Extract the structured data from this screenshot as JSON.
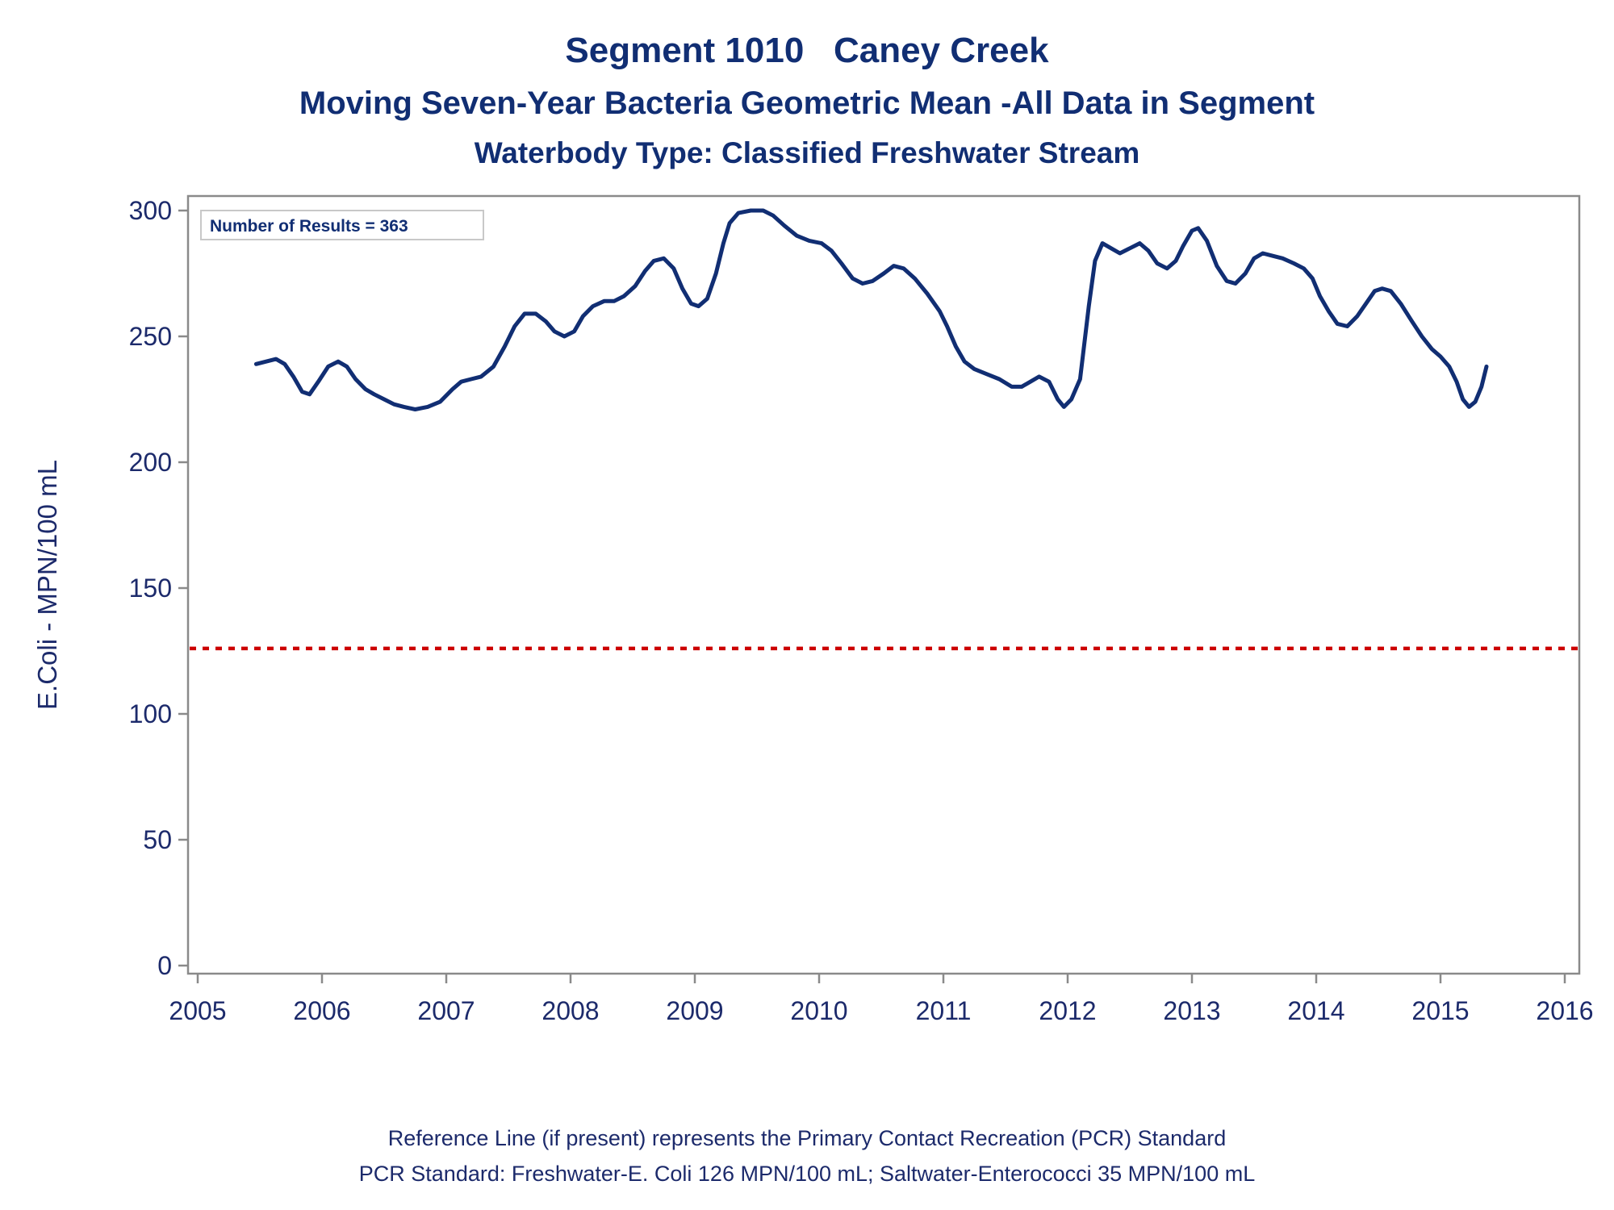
{
  "title": "Segment 1010   Caney Creek",
  "subtitle": "Moving Seven-Year Bacteria Geometric Mean -All Data in Segment",
  "subtitle2": "Waterbody Type: Classified Freshwater Stream",
  "footnote1": "Reference Line (if present) represents the Primary Contact Recreation (PCR) Standard",
  "footnote2": "PCR Standard: Freshwater-E. Coli 126 MPN/100 mL; Saltwater-Enterococci 35 MPN/100 mL",
  "colors": {
    "line": "#112e73",
    "reference": "#cc0000",
    "axis": "#8a8a8a",
    "text": "#1c2a6b"
  },
  "chart_data": {
    "type": "line",
    "ylabel": "E.Coli - MPN/100 mL",
    "xlabel": "",
    "xlim": [
      2005,
      2016
    ],
    "ylim": [
      0,
      300
    ],
    "xticks": [
      2005,
      2006,
      2007,
      2008,
      2009,
      2010,
      2011,
      2012,
      2013,
      2014,
      2015,
      2016
    ],
    "yticks": [
      0,
      50,
      100,
      150,
      200,
      250,
      300
    ],
    "grid": false,
    "annotation": "Number of Results = 363",
    "reference_line": {
      "y": 126,
      "style": "dotted"
    },
    "series": [
      {
        "x": [
          2005.47,
          2005.55,
          2005.63,
          2005.7,
          2005.77,
          2005.84,
          2005.9,
          2005.97,
          2006.05,
          2006.13,
          2006.2,
          2006.27,
          2006.35,
          2006.42,
          2006.5,
          2006.58,
          2006.66,
          2006.75,
          2006.85,
          2006.95,
          2007.05,
          2007.12,
          2007.2,
          2007.28,
          2007.38,
          2007.47,
          2007.55,
          2007.63,
          2007.72,
          2007.8,
          2007.87,
          2007.95,
          2008.03,
          2008.1,
          2008.18,
          2008.27,
          2008.35,
          2008.43,
          2008.52,
          2008.6,
          2008.67,
          2008.75,
          2008.83,
          2008.9,
          2008.97,
          2009.03,
          2009.1,
          2009.17,
          2009.23,
          2009.28,
          2009.35,
          2009.45,
          2009.55,
          2009.63,
          2009.72,
          2009.82,
          2009.92,
          2010.02,
          2010.1,
          2010.18,
          2010.27,
          2010.35,
          2010.43,
          2010.52,
          2010.6,
          2010.68,
          2010.77,
          2010.87,
          2010.97,
          2011.03,
          2011.1,
          2011.17,
          2011.25,
          2011.35,
          2011.45,
          2011.55,
          2011.63,
          2011.7,
          2011.77,
          2011.85,
          2011.92,
          2011.97,
          2012.03,
          2012.1,
          2012.17,
          2012.22,
          2012.28,
          2012.35,
          2012.42,
          2012.5,
          2012.58,
          2012.65,
          2012.72,
          2012.8,
          2012.87,
          2012.93,
          2013.0,
          2013.05,
          2013.12,
          2013.2,
          2013.28,
          2013.35,
          2013.43,
          2013.5,
          2013.57,
          2013.65,
          2013.73,
          2013.82,
          2013.9,
          2013.97,
          2014.03,
          2014.1,
          2014.17,
          2014.25,
          2014.33,
          2014.4,
          2014.47,
          2014.53,
          2014.6,
          2014.68,
          2014.77,
          2014.85,
          2014.93,
          2015.0,
          2015.07,
          2015.13,
          2015.18,
          2015.23,
          2015.28,
          2015.33,
          2015.37
        ],
        "y": [
          239,
          240,
          241,
          239,
          234,
          228,
          227,
          232,
          238,
          240,
          238,
          233,
          229,
          227,
          225,
          223,
          222,
          221,
          222,
          224,
          229,
          232,
          233,
          234,
          238,
          246,
          254,
          259,
          259,
          256,
          252,
          250,
          252,
          258,
          262,
          264,
          264,
          266,
          270,
          276,
          280,
          281,
          277,
          269,
          263,
          262,
          265,
          275,
          287,
          295,
          299,
          300,
          300,
          298,
          294,
          290,
          288,
          287,
          284,
          279,
          273,
          271,
          272,
          275,
          278,
          277,
          273,
          267,
          260,
          254,
          246,
          240,
          237,
          235,
          233,
          230,
          230,
          232,
          234,
          232,
          225,
          222,
          225,
          233,
          262,
          280,
          287,
          285,
          283,
          285,
          287,
          284,
          279,
          277,
          280,
          286,
          292,
          293,
          288,
          278,
          272,
          271,
          275,
          281,
          283,
          282,
          281,
          279,
          277,
          273,
          266,
          260,
          255,
          254,
          258,
          263,
          268,
          269,
          268,
          263,
          256,
          250,
          245,
          242,
          238,
          232,
          225,
          222,
          224,
          230,
          238
        ]
      }
    ]
  }
}
